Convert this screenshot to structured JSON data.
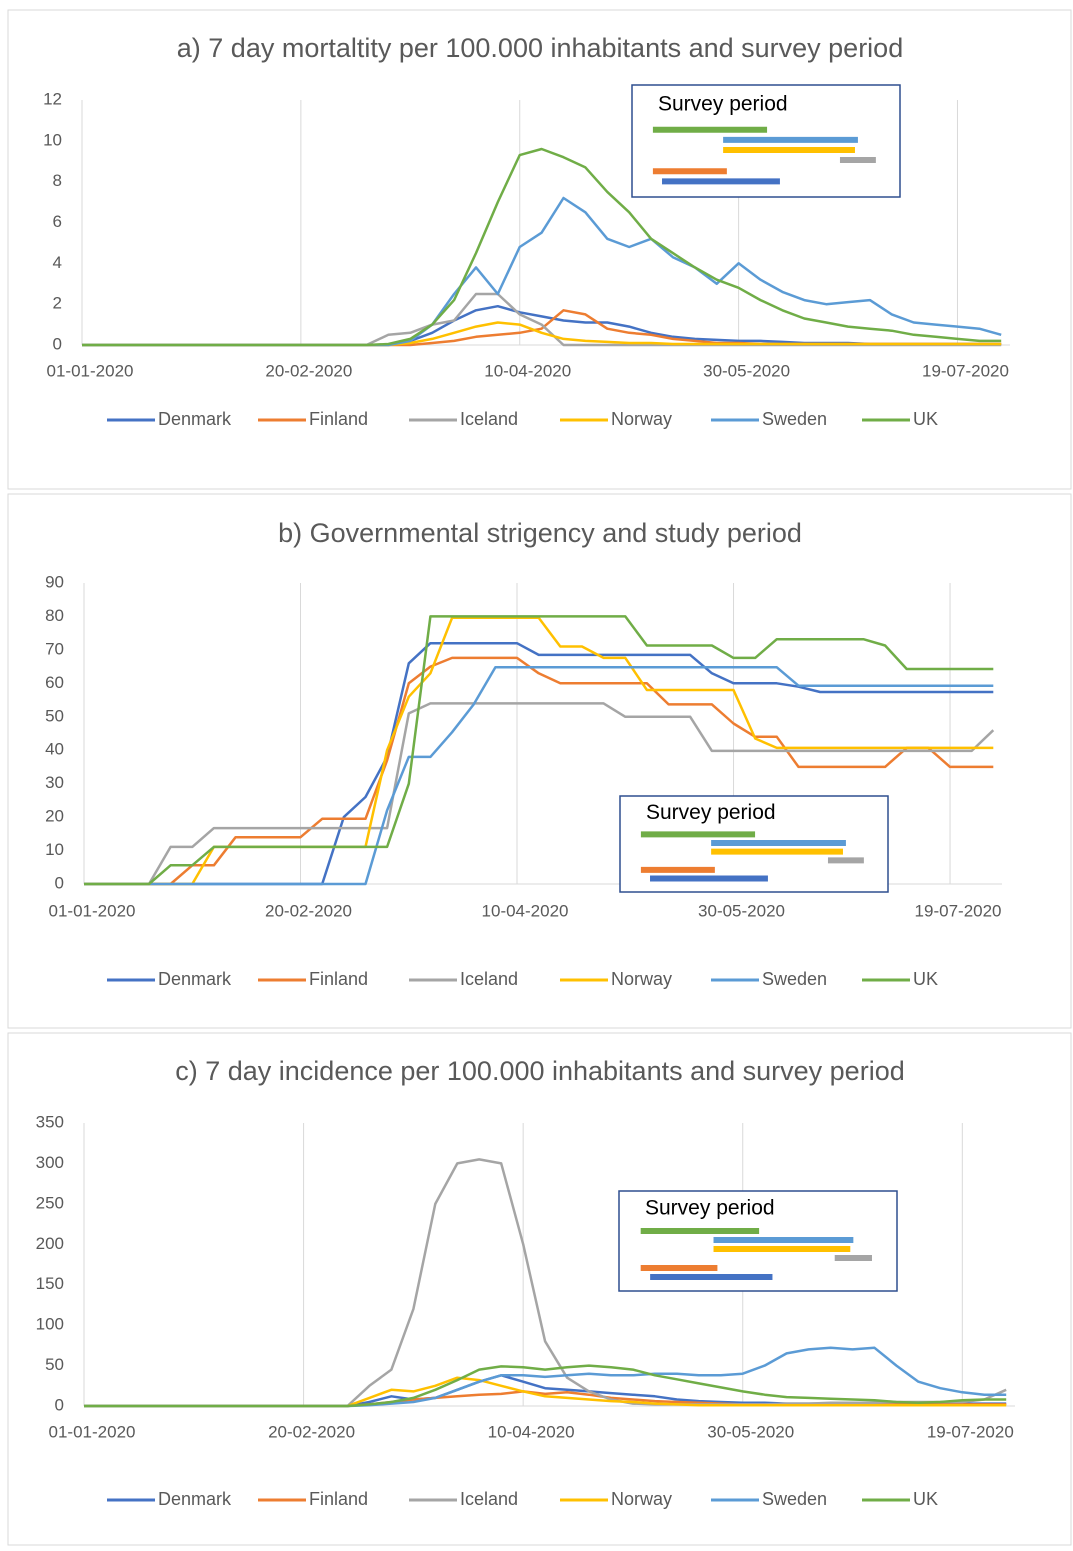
{
  "chart_data": [
    {
      "type": "line",
      "title": "a) 7 day mortaltity per 100.000 inhabitants and survey period",
      "inset_title": "Survey period",
      "grid": "x",
      "x": [
        0,
        60,
        65,
        70,
        75,
        80,
        85,
        90,
        95,
        100,
        105,
        110,
        115,
        120,
        125,
        130,
        135,
        140,
        145,
        150,
        155,
        160,
        165,
        170,
        175,
        180,
        185,
        190,
        195,
        200,
        205,
        210
      ],
      "xlim": [
        0,
        212
      ],
      "xticks": [
        {
          "value": 0,
          "label": "01-01-2020"
        },
        {
          "value": 50,
          "label": "20-02-2020"
        },
        {
          "value": 100,
          "label": "10-04-2020"
        },
        {
          "value": 150,
          "label": "30-05-2020"
        },
        {
          "value": 200,
          "label": "19-07-2020"
        }
      ],
      "ylim": [
        0,
        12
      ],
      "yticks": [
        0,
        2,
        4,
        6,
        8,
        10,
        12
      ],
      "series": [
        {
          "name": "Denmark",
          "color": "#4472c4",
          "values": [
            0,
            0,
            0,
            0,
            0.2,
            0.6,
            1.2,
            1.7,
            1.9,
            1.6,
            1.4,
            1.2,
            1.1,
            1.1,
            0.9,
            0.6,
            0.4,
            0.3,
            0.25,
            0.2,
            0.2,
            0.15,
            0.1,
            0.1,
            0.1,
            0.05,
            0.05,
            0.05,
            0.05,
            0.05,
            0.05,
            0.05
          ]
        },
        {
          "name": "Finland",
          "color": "#ed7d31",
          "values": [
            0,
            0,
            0,
            0,
            0,
            0.1,
            0.2,
            0.4,
            0.5,
            0.6,
            0.8,
            1.7,
            1.5,
            0.8,
            0.6,
            0.5,
            0.3,
            0.2,
            0.1,
            0.1,
            0.05,
            0.05,
            0.05,
            0.05,
            0.05,
            0.05,
            0.05,
            0.05,
            0.05,
            0.05,
            0.05,
            0.05
          ]
        },
        {
          "name": "Iceland",
          "color": "#a5a5a5",
          "values": [
            0,
            0,
            0,
            0.5,
            0.6,
            1,
            1.2,
            2.5,
            2.5,
            1.5,
            1,
            0,
            0,
            0,
            0,
            0,
            0,
            0,
            0,
            0,
            0,
            0,
            0,
            0,
            0,
            0,
            0,
            0,
            0,
            0,
            0,
            0
          ]
        },
        {
          "name": "Norway",
          "color": "#ffc000",
          "values": [
            0,
            0,
            0,
            0,
            0.1,
            0.3,
            0.6,
            0.9,
            1.1,
            1,
            0.6,
            0.3,
            0.2,
            0.15,
            0.1,
            0.1,
            0.05,
            0.05,
            0.05,
            0.05,
            0.05,
            0.05,
            0.05,
            0.05,
            0.05,
            0.05,
            0.05,
            0.05,
            0.05,
            0.05,
            0.05,
            0.05
          ]
        },
        {
          "name": "Sweden",
          "color": "#5b9bd5",
          "values": [
            0,
            0,
            0,
            0,
            0.2,
            1,
            2.5,
            3.8,
            2.5,
            4.8,
            5.5,
            7.2,
            6.5,
            5.2,
            4.8,
            5.2,
            4.3,
            3.8,
            3,
            4,
            3.2,
            2.6,
            2.2,
            2,
            2.1,
            2.2,
            1.5,
            1.1,
            1,
            0.9,
            0.8,
            0.5
          ]
        },
        {
          "name": "UK",
          "color": "#70ad47",
          "values": [
            0,
            0,
            0,
            0.05,
            0.3,
            1,
            2.2,
            4.5,
            7,
            9.3,
            9.6,
            9.2,
            8.7,
            7.5,
            6.5,
            5.2,
            4.5,
            3.8,
            3.2,
            2.8,
            2.2,
            1.7,
            1.3,
            1.1,
            0.9,
            0.8,
            0.7,
            0.5,
            0.4,
            0.3,
            0.2,
            0.2
          ]
        }
      ]
    },
    {
      "type": "line",
      "title": "b) Governmental strigency and study period",
      "inset_title": "Survey period",
      "grid": "x",
      "x": [
        0,
        5,
        10,
        15,
        20,
        25,
        30,
        35,
        40,
        45,
        50,
        55,
        60,
        65,
        70,
        75,
        80,
        85,
        90,
        95,
        100,
        105,
        110,
        115,
        120,
        125,
        130,
        135,
        140,
        145,
        150,
        155,
        160,
        165,
        170,
        175,
        180,
        185,
        190,
        195,
        200,
        205,
        210
      ],
      "xlim": [
        0,
        212
      ],
      "xticks": [
        {
          "value": 0,
          "label": "01-01-2020"
        },
        {
          "value": 50,
          "label": "20-02-2020"
        },
        {
          "value": 100,
          "label": "10-04-2020"
        },
        {
          "value": 150,
          "label": "30-05-2020"
        },
        {
          "value": 200,
          "label": "19-07-2020"
        }
      ],
      "ylim": [
        0,
        90
      ],
      "yticks": [
        0,
        10,
        20,
        30,
        40,
        50,
        60,
        70,
        80,
        90
      ],
      "series": [
        {
          "name": "Denmark",
          "color": "#4472c4",
          "values": [
            0,
            0,
            0,
            0,
            0,
            0,
            0,
            0,
            0,
            0,
            0,
            0,
            20,
            26,
            38,
            66,
            72,
            72,
            72,
            72,
            72,
            68.5,
            68.5,
            68.5,
            68.5,
            68.5,
            68.5,
            68.5,
            68.5,
            63,
            60,
            60,
            60,
            59,
            57.4,
            57.4,
            57.4,
            57.4,
            57.4,
            57.4,
            57.4,
            57.4,
            57.4
          ]
        },
        {
          "name": "Finland",
          "color": "#ed7d31",
          "values": [
            0,
            0,
            0,
            0,
            0,
            5.6,
            5.6,
            14,
            14,
            14,
            14,
            19.5,
            19.5,
            19.5,
            37,
            60,
            65,
            67.6,
            67.6,
            67.6,
            67.6,
            63,
            60,
            60,
            60,
            60,
            60,
            53.7,
            53.7,
            53.7,
            48,
            44,
            44,
            35,
            35,
            35,
            35,
            35,
            40.7,
            40.7,
            35,
            35,
            35
          ]
        },
        {
          "name": "Iceland",
          "color": "#a5a5a5",
          "values": [
            0,
            0,
            0,
            0,
            11.1,
            11.1,
            16.7,
            16.7,
            16.7,
            16.7,
            16.7,
            16.7,
            16.7,
            16.7,
            16.7,
            51,
            54,
            54,
            54,
            54,
            54,
            54,
            54,
            54,
            54,
            50,
            50,
            50,
            50,
            39.8,
            39.8,
            39.8,
            39.8,
            39.8,
            39.8,
            39.8,
            39.8,
            39.8,
            39.8,
            39.8,
            39.8,
            39.8,
            46
          ]
        },
        {
          "name": "Norway",
          "color": "#ffc000",
          "values": [
            0,
            0,
            0,
            0,
            0,
            0,
            11.1,
            11.1,
            11.1,
            11.1,
            11.1,
            11.1,
            11.1,
            11.1,
            40,
            56,
            63,
            79.6,
            79.6,
            79.6,
            79.6,
            79.6,
            71,
            71,
            67.6,
            67.6,
            58,
            58,
            58,
            58,
            58,
            43.5,
            40.7,
            40.7,
            40.7,
            40.7,
            40.7,
            40.7,
            40.7,
            40.7,
            40.7,
            40.7,
            40.7
          ]
        },
        {
          "name": "Sweden",
          "color": "#5b9bd5",
          "values": [
            0,
            0,
            0,
            0,
            0,
            0,
            0,
            0,
            0,
            0,
            0,
            0,
            0,
            0,
            22,
            38,
            38,
            45.4,
            53.7,
            64.8,
            64.8,
            64.8,
            64.8,
            64.8,
            64.8,
            64.8,
            64.8,
            64.8,
            64.8,
            64.8,
            64.8,
            64.8,
            64.8,
            59.3,
            59.3,
            59.3,
            59.3,
            59.3,
            59.3,
            59.3,
            59.3,
            59.3,
            59.3
          ]
        },
        {
          "name": "UK",
          "color": "#70ad47",
          "values": [
            0,
            0,
            0,
            0,
            5.6,
            5.6,
            11.1,
            11.1,
            11.1,
            11.1,
            11.1,
            11.1,
            11.1,
            11.1,
            11.1,
            30,
            80,
            80,
            80,
            80,
            80,
            80,
            80,
            80,
            80,
            80,
            71.3,
            71.3,
            71.3,
            71.3,
            67.6,
            67.6,
            73.2,
            73.2,
            73.2,
            73.2,
            73.2,
            71.3,
            64.3,
            64.3,
            64.3,
            64.3,
            64.3
          ]
        }
      ]
    },
    {
      "type": "line",
      "title": "c) 7 day incidence per 100.000 inhabitants and survey period",
      "inset_title": "Survey period",
      "grid": "x",
      "x": [
        0,
        60,
        65,
        70,
        75,
        80,
        85,
        90,
        95,
        100,
        105,
        110,
        115,
        120,
        125,
        130,
        135,
        140,
        145,
        150,
        155,
        160,
        165,
        170,
        175,
        180,
        185,
        190,
        195,
        200,
        205,
        210
      ],
      "xlim": [
        0,
        212
      ],
      "xticks": [
        {
          "value": 0,
          "label": "01-01-2020"
        },
        {
          "value": 50,
          "label": "20-02-2020"
        },
        {
          "value": 100,
          "label": "10-04-2020"
        },
        {
          "value": 150,
          "label": "30-05-2020"
        },
        {
          "value": 200,
          "label": "19-07-2020"
        }
      ],
      "ylim": [
        0,
        350
      ],
      "yticks": [
        0,
        50,
        100,
        150,
        200,
        250,
        300,
        350
      ],
      "series": [
        {
          "name": "Denmark",
          "color": "#4472c4",
          "values": [
            0,
            0,
            5,
            12,
            8,
            10,
            20,
            30,
            38,
            30,
            22,
            20,
            18,
            16,
            14,
            12,
            8,
            6,
            5,
            4,
            4,
            3,
            3,
            3,
            3,
            3,
            3,
            3,
            3,
            3,
            3,
            3
          ]
        },
        {
          "name": "Finland",
          "color": "#ed7d31",
          "values": [
            0,
            0,
            2,
            5,
            8,
            10,
            12,
            14,
            15,
            18,
            15,
            17,
            14,
            10,
            8,
            6,
            5,
            4,
            3,
            2,
            2,
            2,
            2,
            2,
            2,
            2,
            2,
            2,
            2,
            2,
            2,
            2
          ]
        },
        {
          "name": "Iceland",
          "color": "#a5a5a5",
          "values": [
            0,
            0,
            25,
            45,
            120,
            250,
            300,
            305,
            300,
            200,
            80,
            35,
            18,
            8,
            3,
            2,
            2,
            2,
            2,
            2,
            2,
            3,
            3,
            4,
            4,
            4,
            5,
            5,
            5,
            5,
            8,
            20
          ]
        },
        {
          "name": "Norway",
          "color": "#ffc000",
          "values": [
            0,
            0,
            10,
            20,
            18,
            25,
            35,
            32,
            25,
            18,
            12,
            10,
            8,
            6,
            5,
            3,
            2,
            1,
            1,
            1,
            1,
            1,
            1,
            1,
            1,
            1,
            1,
            1,
            1,
            1,
            1,
            1
          ]
        },
        {
          "name": "Sweden",
          "color": "#5b9bd5",
          "values": [
            0,
            0,
            1,
            3,
            5,
            10,
            20,
            30,
            38,
            38,
            36,
            38,
            40,
            38,
            38,
            40,
            40,
            38,
            38,
            40,
            50,
            65,
            70,
            72,
            70,
            72,
            50,
            30,
            22,
            17,
            14,
            14
          ]
        },
        {
          "name": "UK",
          "color": "#70ad47",
          "values": [
            0,
            0,
            2,
            5,
            10,
            20,
            32,
            45,
            49,
            48,
            45,
            48,
            50,
            48,
            45,
            38,
            33,
            28,
            23,
            18,
            14,
            11,
            10,
            9,
            8,
            7,
            5,
            4,
            5,
            7,
            8,
            8
          ]
        }
      ]
    }
  ]
}
